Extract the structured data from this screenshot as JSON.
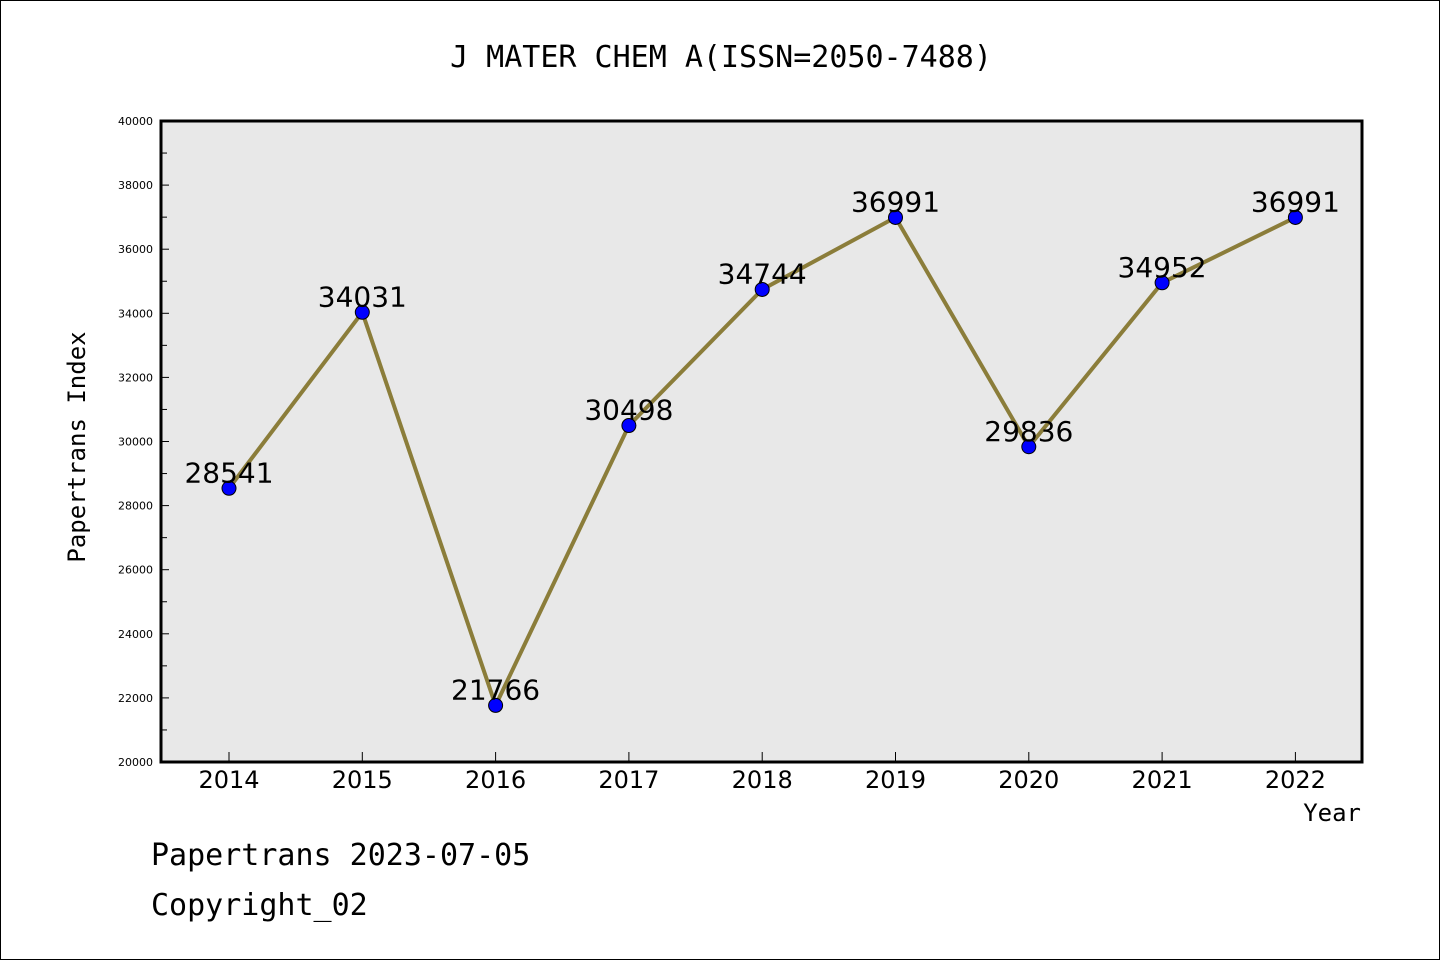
{
  "chart_data": {
    "type": "line",
    "title": "J MATER CHEM A(ISSN=2050-7488)",
    "xlabel": "Year",
    "ylabel": "Papertrans Index",
    "ylim": [
      20000,
      40000
    ],
    "yticks": [
      "20000",
      "22000",
      "24000",
      "26000",
      "28000",
      "30000",
      "32000",
      "34000",
      "36000",
      "38000",
      "40000"
    ],
    "categories": [
      "2014",
      "2015",
      "2016",
      "2017",
      "2018",
      "2019",
      "2020",
      "2021",
      "2022"
    ],
    "values": [
      28541,
      34031,
      21766,
      30498,
      34744,
      36991,
      29836,
      34952,
      36991
    ],
    "data_labels": [
      "28541",
      "34031",
      "21766",
      "30498",
      "34744",
      "36991",
      "29836",
      "34952",
      "36991"
    ],
    "grid": false,
    "line_color": "#8b7d3a",
    "marker_color": "#0000ff",
    "plot_background": "#e8e8e8"
  },
  "footer": {
    "line1": "Papertrans 2023-07-05",
    "line2": "Copyright_02"
  }
}
